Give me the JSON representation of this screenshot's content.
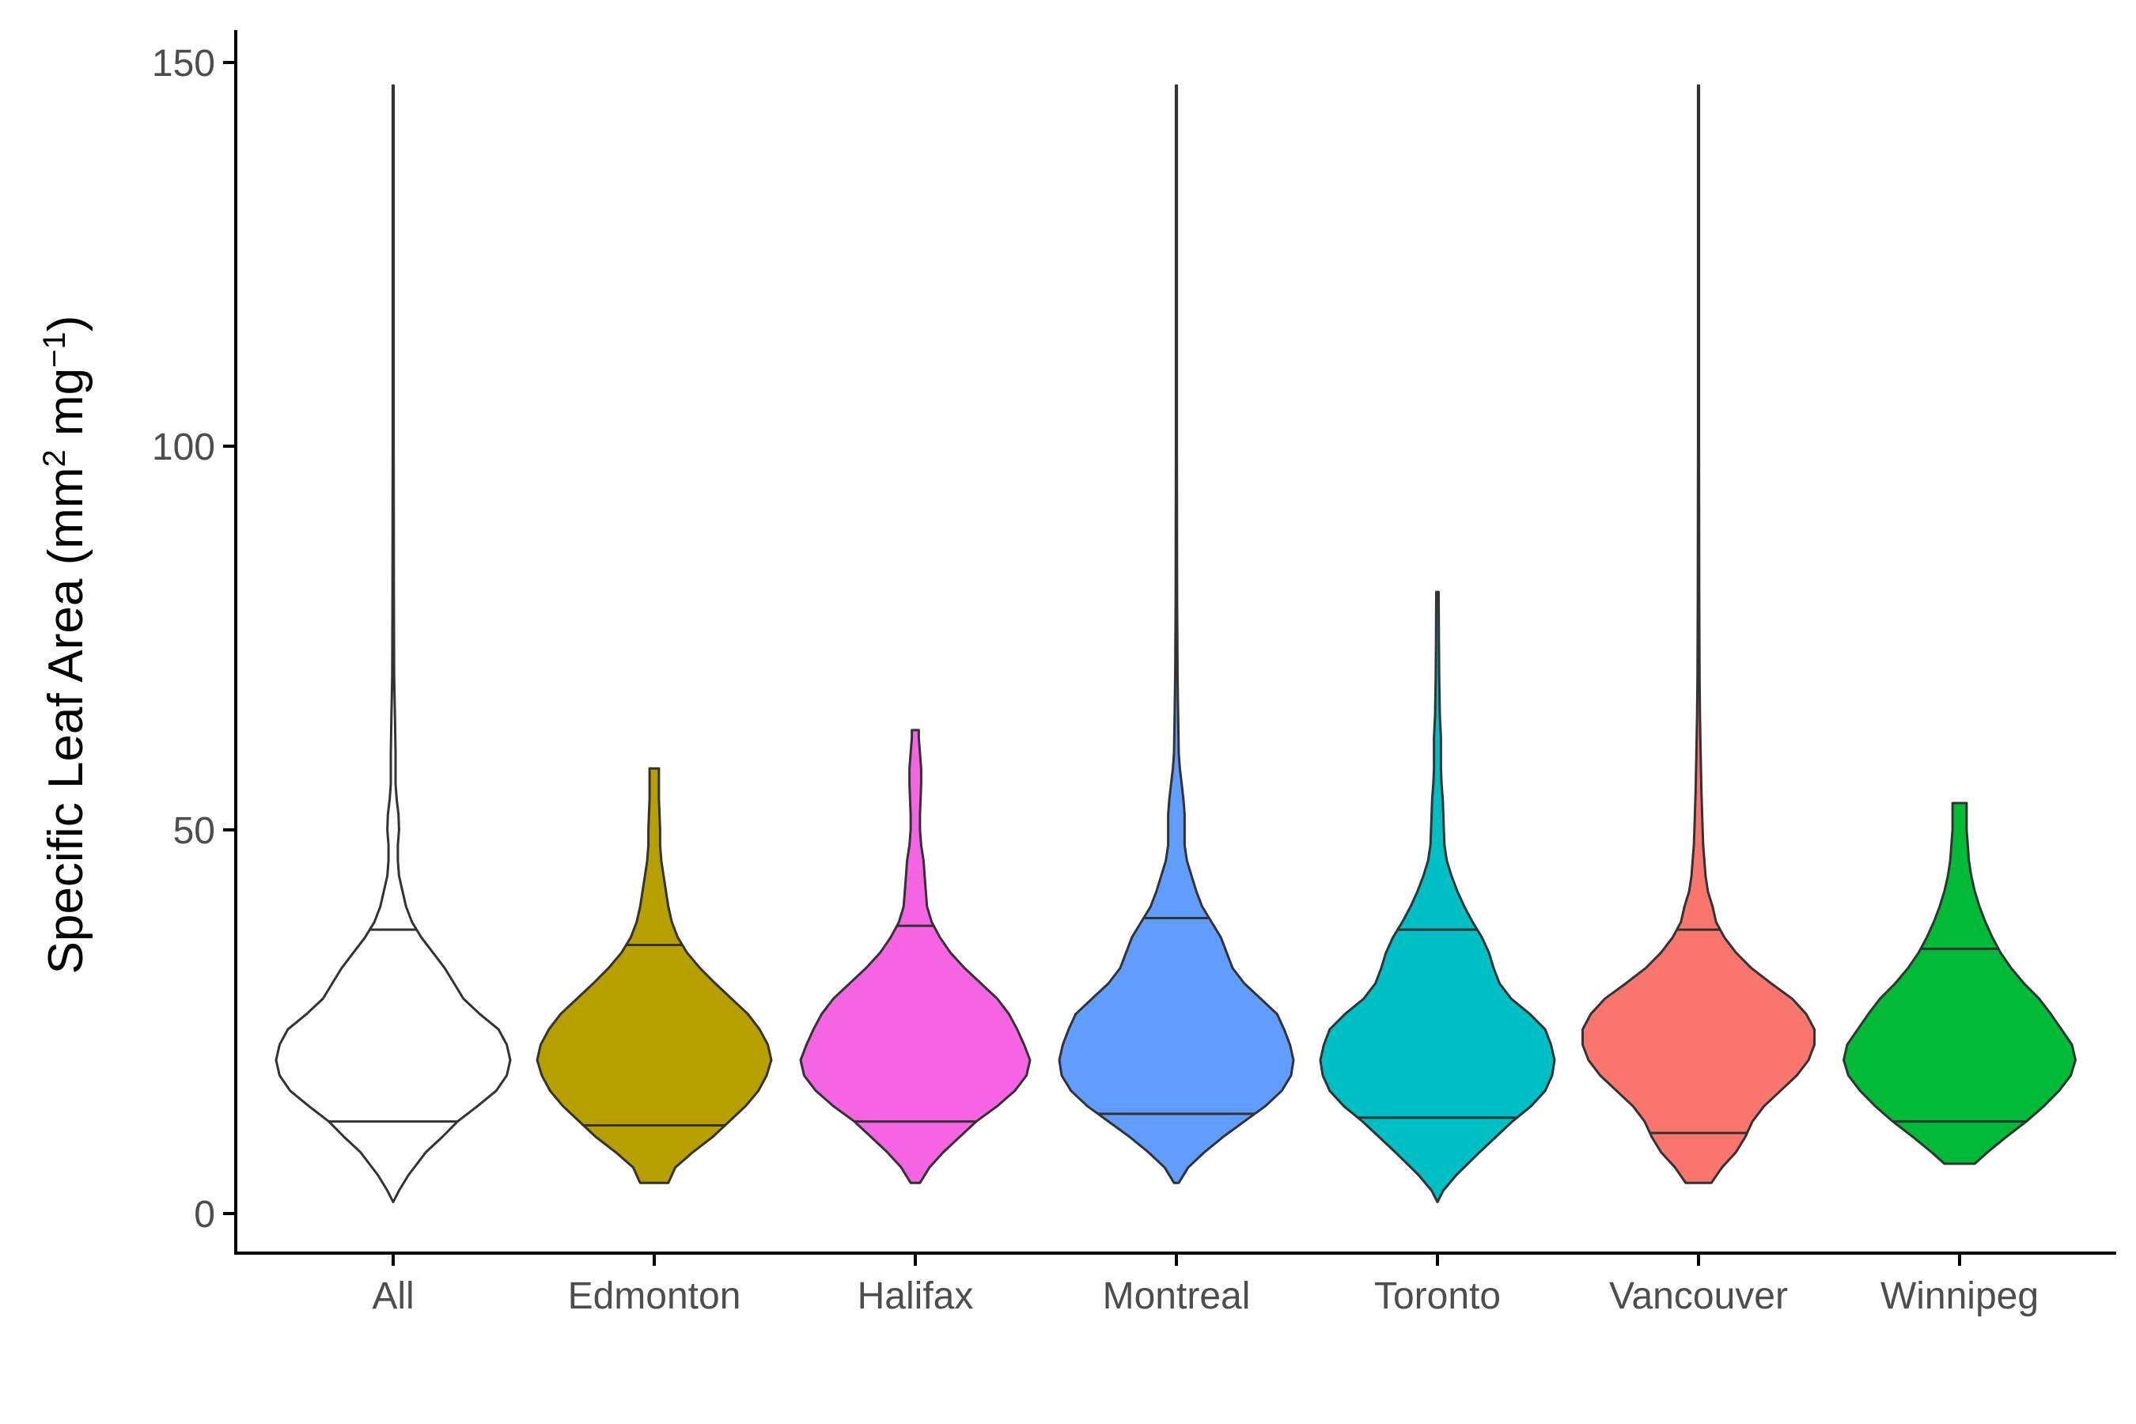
{
  "chart_data": {
    "type": "violin",
    "title": "",
    "xlabel": "",
    "ylabel": {
      "prefix": "Specific Leaf Area (mm",
      "sup1": "2",
      "middle": " mg",
      "sup2": "−1",
      "suffix": ")"
    },
    "ylim": [
      -5,
      155
    ],
    "yticks": [
      0,
      50,
      100,
      150
    ],
    "grid": false,
    "legend": "none",
    "categories": [
      "All",
      "Edmonton",
      "Halifax",
      "Montreal",
      "Toronto",
      "Vancouver",
      "Winnipeg"
    ],
    "series": [
      {
        "category": "All",
        "color": "#ffffff",
        "min": 1.5,
        "max": 147,
        "q1": 12,
        "q3": 37,
        "profile": [
          [
            1.5,
            0
          ],
          [
            3,
            0.05
          ],
          [
            5,
            0.13
          ],
          [
            8,
            0.28
          ],
          [
            10,
            0.42
          ],
          [
            12,
            0.55
          ],
          [
            14,
            0.72
          ],
          [
            16,
            0.88
          ],
          [
            18,
            0.97
          ],
          [
            20,
            1
          ],
          [
            22,
            0.97
          ],
          [
            24,
            0.9
          ],
          [
            26,
            0.74
          ],
          [
            28,
            0.6
          ],
          [
            30,
            0.52
          ],
          [
            32,
            0.44
          ],
          [
            34,
            0.34
          ],
          [
            36,
            0.24
          ],
          [
            38,
            0.16
          ],
          [
            40,
            0.11
          ],
          [
            42,
            0.08
          ],
          [
            44,
            0.05
          ],
          [
            46,
            0.04
          ],
          [
            48,
            0.04
          ],
          [
            50,
            0.05
          ],
          [
            52,
            0.045
          ],
          [
            54,
            0.03
          ],
          [
            56,
            0.02
          ],
          [
            60,
            0.02
          ],
          [
            65,
            0.015
          ],
          [
            70,
            0.008
          ],
          [
            80,
            0.006
          ],
          [
            100,
            0.004
          ],
          [
            147,
            0.004
          ]
        ]
      },
      {
        "category": "Edmonton",
        "color": "#b79f00",
        "min": 4,
        "max": 58,
        "q1": 11.5,
        "q3": 35,
        "profile": [
          [
            4,
            0.12
          ],
          [
            6,
            0.18
          ],
          [
            8,
            0.33
          ],
          [
            10,
            0.5
          ],
          [
            12,
            0.64
          ],
          [
            14,
            0.78
          ],
          [
            16,
            0.89
          ],
          [
            18,
            0.96
          ],
          [
            20,
            1
          ],
          [
            22,
            0.97
          ],
          [
            24,
            0.9
          ],
          [
            26,
            0.8
          ],
          [
            28,
            0.66
          ],
          [
            30,
            0.52
          ],
          [
            32,
            0.39
          ],
          [
            34,
            0.28
          ],
          [
            36,
            0.2
          ],
          [
            38,
            0.15
          ],
          [
            40,
            0.12
          ],
          [
            42,
            0.1
          ],
          [
            44,
            0.08
          ],
          [
            46,
            0.06
          ],
          [
            48,
            0.05
          ],
          [
            50,
            0.05
          ],
          [
            52,
            0.045
          ],
          [
            54,
            0.04
          ],
          [
            56,
            0.04
          ],
          [
            58,
            0.04
          ]
        ]
      },
      {
        "category": "Halifax",
        "color": "#f564e3",
        "min": 4,
        "max": 63,
        "q1": 12,
        "q3": 37.5,
        "profile": [
          [
            4,
            0.04
          ],
          [
            6,
            0.12
          ],
          [
            8,
            0.24
          ],
          [
            10,
            0.38
          ],
          [
            12,
            0.52
          ],
          [
            14,
            0.7
          ],
          [
            16,
            0.85
          ],
          [
            18,
            0.95
          ],
          [
            20,
            0.98
          ],
          [
            22,
            0.93
          ],
          [
            24,
            0.87
          ],
          [
            26,
            0.8
          ],
          [
            28,
            0.7
          ],
          [
            30,
            0.56
          ],
          [
            32,
            0.42
          ],
          [
            34,
            0.3
          ],
          [
            36,
            0.21
          ],
          [
            38,
            0.14
          ],
          [
            40,
            0.1
          ],
          [
            42,
            0.09
          ],
          [
            44,
            0.08
          ],
          [
            46,
            0.07
          ],
          [
            48,
            0.05
          ],
          [
            50,
            0.04
          ],
          [
            52,
            0.04
          ],
          [
            54,
            0.045
          ],
          [
            56,
            0.05
          ],
          [
            58,
            0.05
          ],
          [
            60,
            0.04
          ],
          [
            62,
            0.03
          ],
          [
            63,
            0.03
          ]
        ]
      },
      {
        "category": "Montreal",
        "color": "#619cff",
        "min": 4,
        "max": 147,
        "q1": 13,
        "q3": 38.5,
        "profile": [
          [
            4,
            0.02
          ],
          [
            6,
            0.1
          ],
          [
            8,
            0.24
          ],
          [
            10,
            0.4
          ],
          [
            12,
            0.58
          ],
          [
            14,
            0.76
          ],
          [
            16,
            0.9
          ],
          [
            18,
            0.98
          ],
          [
            20,
            1
          ],
          [
            22,
            0.97
          ],
          [
            24,
            0.92
          ],
          [
            26,
            0.86
          ],
          [
            28,
            0.72
          ],
          [
            30,
            0.58
          ],
          [
            32,
            0.48
          ],
          [
            34,
            0.43
          ],
          [
            36,
            0.38
          ],
          [
            38,
            0.3
          ],
          [
            40,
            0.22
          ],
          [
            42,
            0.17
          ],
          [
            44,
            0.13
          ],
          [
            46,
            0.09
          ],
          [
            48,
            0.07
          ],
          [
            50,
            0.07
          ],
          [
            52,
            0.07
          ],
          [
            54,
            0.06
          ],
          [
            56,
            0.045
          ],
          [
            58,
            0.03
          ],
          [
            60,
            0.02
          ],
          [
            65,
            0.015
          ],
          [
            70,
            0.01
          ],
          [
            80,
            0.006
          ],
          [
            100,
            0.004
          ],
          [
            147,
            0.004
          ]
        ]
      },
      {
        "category": "Toronto",
        "color": "#00bfc4",
        "min": 1.5,
        "max": 81,
        "q1": 12.5,
        "q3": 37,
        "profile": [
          [
            1.5,
            0
          ],
          [
            3,
            0.05
          ],
          [
            5,
            0.16
          ],
          [
            8,
            0.36
          ],
          [
            10,
            0.5
          ],
          [
            12,
            0.64
          ],
          [
            14,
            0.8
          ],
          [
            16,
            0.92
          ],
          [
            18,
            0.98
          ],
          [
            20,
            1
          ],
          [
            22,
            0.97
          ],
          [
            24,
            0.92
          ],
          [
            26,
            0.79
          ],
          [
            28,
            0.63
          ],
          [
            30,
            0.53
          ],
          [
            32,
            0.48
          ],
          [
            34,
            0.44
          ],
          [
            36,
            0.38
          ],
          [
            38,
            0.3
          ],
          [
            40,
            0.23
          ],
          [
            42,
            0.17
          ],
          [
            44,
            0.12
          ],
          [
            46,
            0.08
          ],
          [
            48,
            0.06
          ],
          [
            50,
            0.055
          ],
          [
            52,
            0.05
          ],
          [
            54,
            0.045
          ],
          [
            56,
            0.035
          ],
          [
            58,
            0.03
          ],
          [
            60,
            0.03
          ],
          [
            62,
            0.03
          ],
          [
            65,
            0.02
          ],
          [
            70,
            0.015
          ],
          [
            75,
            0.012
          ],
          [
            81,
            0.01
          ]
        ]
      },
      {
        "category": "Vancouver",
        "color": "#f8766d",
        "min": 4,
        "max": 147,
        "q1": 10.5,
        "q3": 37,
        "profile": [
          [
            4,
            0.11
          ],
          [
            6,
            0.2
          ],
          [
            8,
            0.32
          ],
          [
            10,
            0.4
          ],
          [
            12,
            0.46
          ],
          [
            14,
            0.56
          ],
          [
            16,
            0.7
          ],
          [
            18,
            0.84
          ],
          [
            20,
            0.94
          ],
          [
            22,
            0.99
          ],
          [
            24,
            0.99
          ],
          [
            26,
            0.92
          ],
          [
            28,
            0.8
          ],
          [
            30,
            0.62
          ],
          [
            32,
            0.45
          ],
          [
            34,
            0.32
          ],
          [
            36,
            0.22
          ],
          [
            38,
            0.15
          ],
          [
            40,
            0.12
          ],
          [
            42,
            0.08
          ],
          [
            44,
            0.06
          ],
          [
            46,
            0.05
          ],
          [
            48,
            0.04
          ],
          [
            50,
            0.035
          ],
          [
            55,
            0.025
          ],
          [
            60,
            0.018
          ],
          [
            65,
            0.012
          ],
          [
            70,
            0.009
          ],
          [
            80,
            0.006
          ],
          [
            100,
            0.004
          ],
          [
            147,
            0.004
          ]
        ]
      },
      {
        "category": "Winnipeg",
        "color": "#00ba38",
        "min": 6.5,
        "max": 53.5,
        "q1": 12,
        "q3": 34.5,
        "profile": [
          [
            6.5,
            0.13
          ],
          [
            8,
            0.24
          ],
          [
            10,
            0.4
          ],
          [
            12,
            0.57
          ],
          [
            14,
            0.72
          ],
          [
            16,
            0.85
          ],
          [
            18,
            0.95
          ],
          [
            20,
            0.99
          ],
          [
            22,
            0.96
          ],
          [
            24,
            0.87
          ],
          [
            26,
            0.78
          ],
          [
            28,
            0.68
          ],
          [
            30,
            0.55
          ],
          [
            32,
            0.44
          ],
          [
            34,
            0.35
          ],
          [
            36,
            0.28
          ],
          [
            38,
            0.22
          ],
          [
            40,
            0.17
          ],
          [
            42,
            0.13
          ],
          [
            44,
            0.1
          ],
          [
            46,
            0.08
          ],
          [
            48,
            0.07
          ],
          [
            50,
            0.06
          ],
          [
            52,
            0.06
          ],
          [
            53.5,
            0.06
          ]
        ]
      }
    ]
  }
}
